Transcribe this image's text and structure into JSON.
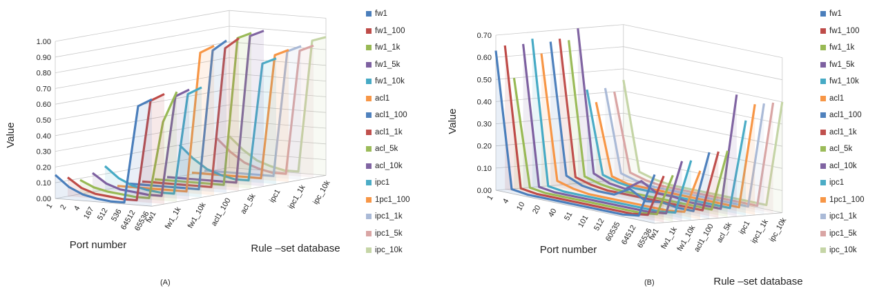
{
  "colors": [
    "#4a7ebb",
    "#be4b48",
    "#98b954",
    "#7d60a0",
    "#46aac5",
    "#f79646",
    "#4f81bd",
    "#c0504d",
    "#9bbb59",
    "#8064a2",
    "#4bacc6",
    "#f79646",
    "#aabad7",
    "#d9a5a4",
    "#c5d5a6"
  ],
  "chart_data": [
    {
      "type": "line",
      "panel_label": "(A)",
      "zlabel": "Value",
      "xlabel": "Port number",
      "ylabel": "Rule –set database",
      "z_ticks": [
        "0.00",
        "0.10",
        "0.20",
        "0.30",
        "0.40",
        "0.50",
        "0.60",
        "0.70",
        "0.80",
        "0.90",
        "1.00"
      ],
      "zlim": [
        0,
        1.0
      ],
      "grid": true,
      "legend_position": "right",
      "x_categories": [
        "1",
        "2",
        "4",
        "167",
        "512",
        "536",
        "64512",
        "65536"
      ],
      "y_tick_labels": [
        "fw1",
        "fw1_1k",
        "fw1_10k",
        "acl1_100",
        "acl_5k",
        "ipc1",
        "ipc1_1k",
        "ipc_10k"
      ],
      "series": [
        {
          "name": "fw1",
          "values": [
            0.15,
            0.08,
            0.04,
            0.02,
            0.01,
            0.01,
            0.63,
            0.68
          ]
        },
        {
          "name": "fw1_100",
          "values": [
            0.12,
            0.06,
            0.03,
            0.02,
            0.01,
            0.01,
            0.65,
            0.7
          ]
        },
        {
          "name": "fw1_1k",
          "values": [
            0.09,
            0.05,
            0.03,
            0.02,
            0.01,
            0.01,
            0.5,
            0.7
          ]
        },
        {
          "name": "fw1_5k",
          "values": [
            0.12,
            0.06,
            0.03,
            0.02,
            0.01,
            0.01,
            0.65,
            0.7
          ]
        },
        {
          "name": "fw1_10k",
          "values": [
            0.15,
            0.08,
            0.04,
            0.02,
            0.01,
            0.01,
            0.65,
            0.7
          ]
        },
        {
          "name": "acl1",
          "values": [
            0.01,
            0.01,
            0.01,
            0.01,
            0.01,
            0.01,
            0.9,
            0.95
          ]
        },
        {
          "name": "acl1_100",
          "values": [
            0.01,
            0.01,
            0.01,
            0.01,
            0.01,
            0.01,
            0.9,
            0.97
          ]
        },
        {
          "name": "acl1_1k",
          "values": [
            0.01,
            0.01,
            0.01,
            0.01,
            0.01,
            0.01,
            0.9,
            0.97
          ]
        },
        {
          "name": "acl_5k",
          "values": [
            0.01,
            0.01,
            0.01,
            0.01,
            0.01,
            0.01,
            0.95,
            0.99
          ]
        },
        {
          "name": "acl_10k",
          "values": [
            0.01,
            0.01,
            0.01,
            0.01,
            0.01,
            0.01,
            0.95,
            0.99
          ]
        },
        {
          "name": "ipc1",
          "values": [
            0.2,
            0.12,
            0.06,
            0.03,
            0.01,
            0.01,
            0.76,
            0.8
          ]
        },
        {
          "name": "1pc1_100",
          "values": [
            0.01,
            0.01,
            0.01,
            0.01,
            0.01,
            0.01,
            0.8,
            0.84
          ]
        },
        {
          "name": "ipc1_1k",
          "values": [
            0.01,
            0.01,
            0.01,
            0.01,
            0.01,
            0.01,
            0.81,
            0.85
          ]
        },
        {
          "name": "ipc1_5k",
          "values": [
            0.2,
            0.12,
            0.06,
            0.03,
            0.01,
            0.01,
            0.8,
            0.84
          ]
        },
        {
          "name": "ipc_10k",
          "values": [
            0.2,
            0.12,
            0.06,
            0.03,
            0.01,
            0.01,
            0.85,
            0.88
          ]
        }
      ]
    },
    {
      "type": "line",
      "panel_label": "(B)",
      "zlabel": "Value",
      "xlabel": "Port number",
      "ylabel": "Rule –set database",
      "z_ticks": [
        "0.00",
        "0.10",
        "0.20",
        "0.30",
        "0.40",
        "0.50",
        "0.60",
        "0.70"
      ],
      "zlim": [
        0,
        0.7
      ],
      "grid": true,
      "legend_position": "right",
      "x_categories": [
        "1",
        "4",
        "10",
        "20",
        "40",
        "51",
        "101",
        "512",
        "60535",
        "64512",
        "65536"
      ],
      "y_tick_labels": [
        "fw1",
        "fw1_1k",
        "fw1_10k",
        "acl1_100",
        "acl_5k",
        "ipc1",
        "ipc1_1k",
        "ipc_10k"
      ],
      "series": [
        {
          "name": "fw1",
          "values": [
            0.63,
            0.02,
            0.01,
            0.01,
            0.01,
            0.01,
            0.01,
            0.01,
            0.01,
            0.02,
            0.22
          ]
        },
        {
          "name": "fw1_100",
          "values": [
            0.65,
            0.02,
            0.01,
            0.01,
            0.01,
            0.01,
            0.01,
            0.01,
            0.01,
            0.02,
            0.21
          ]
        },
        {
          "name": "fw1_1k",
          "values": [
            0.5,
            0.02,
            0.01,
            0.01,
            0.01,
            0.01,
            0.01,
            0.01,
            0.01,
            0.02,
            0.21
          ]
        },
        {
          "name": "fw1_5k",
          "values": [
            0.65,
            0.02,
            0.01,
            0.01,
            0.01,
            0.01,
            0.01,
            0.01,
            0.01,
            0.02,
            0.27
          ]
        },
        {
          "name": "fw1_10k",
          "values": [
            0.67,
            0.02,
            0.01,
            0.01,
            0.01,
            0.01,
            0.01,
            0.01,
            0.01,
            0.02,
            0.27
          ]
        },
        {
          "name": "acl1",
          "values": [
            0.6,
            0.04,
            0.02,
            0.01,
            0.01,
            0.01,
            0.01,
            0.01,
            0.01,
            0.02,
            0.22
          ]
        },
        {
          "name": "acl1_100",
          "values": [
            0.65,
            0.06,
            0.03,
            0.02,
            0.02,
            0.06,
            0.02,
            0.03,
            0.02,
            0.02,
            0.3
          ]
        },
        {
          "name": "acl1_1k",
          "values": [
            0.66,
            0.05,
            0.03,
            0.02,
            0.02,
            0.02,
            0.02,
            0.02,
            0.02,
            0.02,
            0.3
          ]
        },
        {
          "name": "acl_5k",
          "values": [
            0.65,
            0.05,
            0.03,
            0.02,
            0.02,
            0.02,
            0.02,
            0.02,
            0.02,
            0.02,
            0.3
          ]
        },
        {
          "name": "acl_10k",
          "values": [
            0.7,
            0.06,
            0.03,
            0.02,
            0.07,
            0.03,
            0.03,
            0.02,
            0.02,
            0.02,
            0.55
          ]
        },
        {
          "name": "ipc1",
          "values": [
            0.42,
            0.05,
            0.03,
            0.02,
            0.02,
            0.02,
            0.02,
            0.02,
            0.02,
            0.02,
            0.43
          ]
        },
        {
          "name": "1pc1_100",
          "values": [
            0.36,
            0.04,
            0.02,
            0.02,
            0.02,
            0.02,
            0.02,
            0.02,
            0.02,
            0.02,
            0.5
          ]
        },
        {
          "name": "ipc1_1k",
          "values": [
            0.42,
            0.05,
            0.03,
            0.02,
            0.02,
            0.02,
            0.02,
            0.02,
            0.02,
            0.02,
            0.5
          ]
        },
        {
          "name": "ipc1_5k",
          "values": [
            0.4,
            0.05,
            0.03,
            0.02,
            0.02,
            0.02,
            0.02,
            0.02,
            0.02,
            0.02,
            0.5
          ]
        },
        {
          "name": "ipc_10k",
          "values": [
            0.45,
            0.05,
            0.03,
            0.02,
            0.02,
            0.02,
            0.02,
            0.02,
            0.02,
            0.02,
            0.5
          ]
        }
      ]
    }
  ]
}
